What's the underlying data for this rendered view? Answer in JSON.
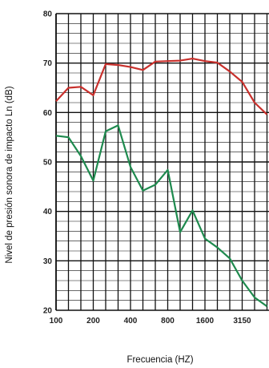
{
  "chart_data": {
    "type": "line",
    "title": "",
    "xlabel": "Frecuencia (HZ)",
    "ylabel": "Nivel de presión sonora de impacto Ln (dB)",
    "ylim": [
      20,
      80
    ],
    "yticks": [
      20,
      30,
      40,
      50,
      60,
      70,
      80
    ],
    "grid": true,
    "x": [
      "100",
      "125",
      "160",
      "200",
      "250",
      "315",
      "400",
      "500",
      "630",
      "800",
      "1000",
      "1250",
      "1600",
      "2000",
      "2500",
      "3150",
      "4000",
      "5000"
    ],
    "x_tick_labels": [
      "100",
      "200",
      "400",
      "800",
      "1600",
      "3150"
    ],
    "series": [
      {
        "color": "#c8302c",
        "values": [
          62.3,
          65.0,
          65.2,
          63.5,
          69.8,
          69.6,
          69.2,
          68.6,
          70.3,
          70.4,
          70.5,
          70.9,
          70.4,
          70.1,
          68.3,
          66.2,
          62.0,
          59.6
        ]
      },
      {
        "color": "#1e8a4e",
        "values": [
          55.3,
          55.0,
          51.2,
          46.2,
          56.2,
          57.4,
          49.0,
          44.2,
          45.4,
          48.4,
          35.8,
          40.2,
          34.5,
          32.7,
          30.5,
          26.0,
          22.6,
          20.8
        ]
      }
    ]
  }
}
